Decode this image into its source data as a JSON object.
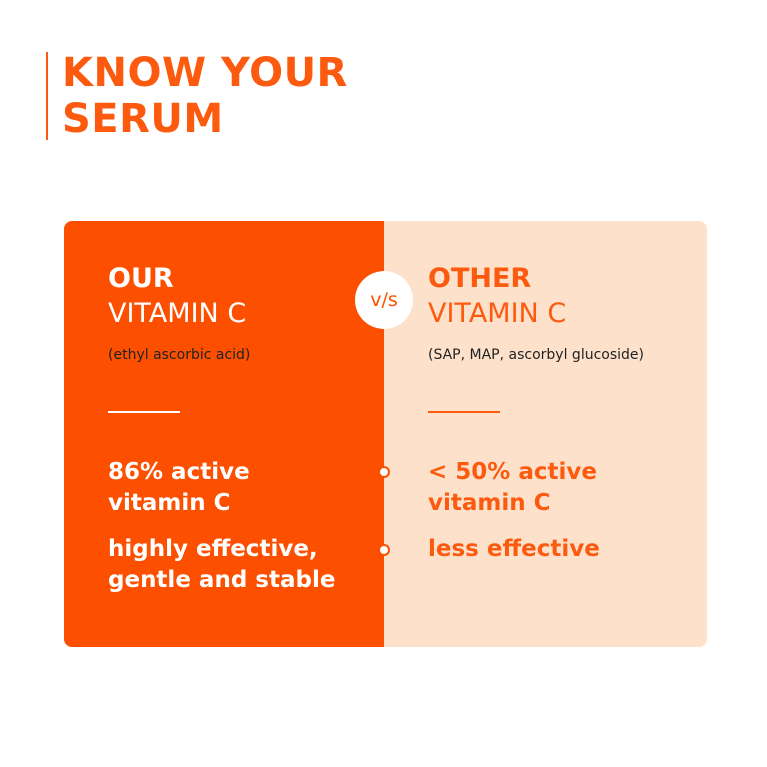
{
  "header": {
    "title_line1": "KNOW YOUR",
    "title_line2": "SERUM"
  },
  "comparison": {
    "vs_label": "v/s",
    "ours": {
      "heading": "OUR",
      "subheading": "VITAMIN C",
      "note": "(ethyl ascorbic acid)",
      "points": [
        "86% active",
        "vitamin C",
        "highly effective,",
        "gentle and stable"
      ]
    },
    "other": {
      "heading": "OTHER",
      "subheading": "VITAMIN C",
      "note": "(SAP, MAP, ascorbyl glucoside)",
      "points": [
        "< 50% active",
        "vitamin C",
        "less effective"
      ]
    }
  },
  "colors": {
    "brand": "#fc4f00",
    "peach": "#fde1cb"
  }
}
